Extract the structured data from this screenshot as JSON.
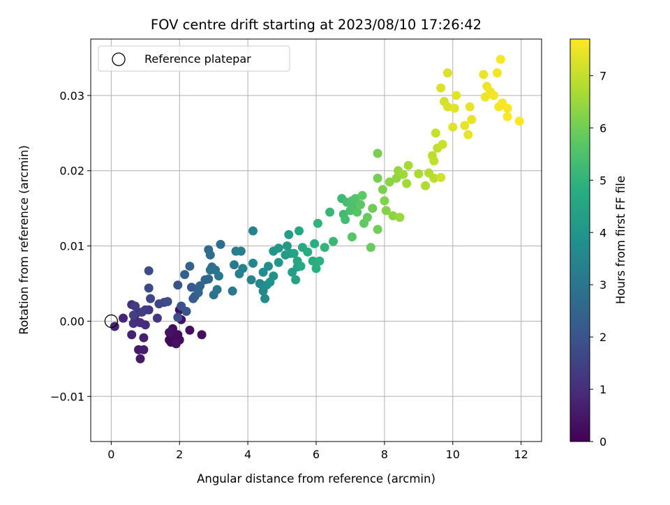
{
  "chart_data": {
    "type": "scatter",
    "title": "FOV centre drift starting at 2023/08/10 17:26:42",
    "xlabel": "Angular distance from reference (arcmin)",
    "ylabel": "Rotation from reference (arcmin)",
    "xlim": [
      -0.6,
      12.6
    ],
    "ylim": [
      -0.016,
      0.0375
    ],
    "xticks": [
      0,
      2,
      4,
      6,
      8,
      10,
      12
    ],
    "xtick_labels": [
      "0",
      "2",
      "4",
      "6",
      "8",
      "10",
      "12"
    ],
    "yticks": [
      -0.01,
      0.0,
      0.01,
      0.02,
      0.03
    ],
    "ytick_labels": [
      "−0.01",
      "0.00",
      "0.01",
      "0.02",
      "0.03"
    ],
    "grid": true,
    "legend": {
      "location": "upper-left",
      "entries": [
        "Reference platepar"
      ]
    },
    "reference_point": {
      "x": 0.0,
      "y": 0.0,
      "marker": "open-circle"
    },
    "colorbar": {
      "label": "Hours from first FF file",
      "colormap": "viridis",
      "range": [
        0,
        7.7
      ],
      "ticks": [
        0,
        1,
        2,
        3,
        4,
        5,
        6,
        7
      ],
      "tick_labels": [
        "0",
        "1",
        "2",
        "3",
        "4",
        "5",
        "6",
        "7"
      ]
    },
    "series": [
      {
        "columns": [
          "x",
          "y",
          "hours"
        ],
        "points": [
          [
            1.7,
            -0.0025,
            0.1
          ],
          [
            1.8,
            -0.002,
            0.12
          ],
          [
            1.9,
            -0.003,
            0.14
          ],
          [
            1.75,
            -0.0028,
            0.15
          ],
          [
            1.85,
            -0.0022,
            0.18
          ],
          [
            2.0,
            -0.0025,
            0.2
          ],
          [
            1.95,
            -0.0018,
            0.22
          ],
          [
            1.8,
            -0.001,
            0.25
          ],
          [
            2.65,
            -0.0018,
            0.28
          ],
          [
            2.3,
            -0.0012,
            0.3
          ],
          [
            2.05,
            0.0002,
            0.33
          ],
          [
            2.0,
            0.0015,
            0.35
          ],
          [
            1.9,
            -0.003,
            0.38
          ],
          [
            1.7,
            -0.0015,
            0.4
          ],
          [
            0.85,
            -0.005,
            0.5
          ],
          [
            0.8,
            -0.0038,
            0.55
          ],
          [
            0.95,
            -0.0038,
            0.6
          ],
          [
            0.95,
            -0.0022,
            0.65
          ],
          [
            0.6,
            -0.0018,
            0.7
          ],
          [
            0.1,
            -0.0007,
            0.75
          ],
          [
            0.35,
            0.0004,
            0.8
          ],
          [
            0.7,
            0.0002,
            0.85
          ],
          [
            0.8,
            0.0012,
            0.9
          ],
          [
            1.0,
            -0.0005,
            0.95
          ],
          [
            0.85,
            -0.0002,
            1.0
          ],
          [
            0.6,
            0.0022,
            1.05
          ],
          [
            0.65,
            -0.0003,
            1.1
          ],
          [
            1.35,
            0.0004,
            1.2
          ],
          [
            1.1,
            0.0015,
            1.25
          ],
          [
            1.0,
            0.0015,
            1.3
          ],
          [
            0.7,
            0.002,
            1.35
          ],
          [
            0.9,
            0.0012,
            1.4
          ],
          [
            0.65,
            0.0008,
            1.45
          ],
          [
            1.55,
            0.0025,
            1.55
          ],
          [
            1.4,
            0.0023,
            1.6
          ],
          [
            1.15,
            0.003,
            1.65
          ],
          [
            1.1,
            0.0044,
            1.7
          ],
          [
            1.1,
            0.0067,
            1.75
          ],
          [
            1.65,
            0.0026,
            1.8
          ],
          [
            1.95,
            0.0005,
            1.85
          ],
          [
            2.05,
            0.002,
            1.9
          ],
          [
            1.95,
            0.0048,
            1.95
          ],
          [
            2.2,
            0.0013,
            2.05
          ],
          [
            2.35,
            0.0045,
            2.15
          ],
          [
            2.4,
            0.003,
            2.2
          ],
          [
            2.45,
            0.0033,
            2.25
          ],
          [
            2.55,
            0.0043,
            2.3
          ],
          [
            2.15,
            0.0062,
            2.35
          ],
          [
            2.3,
            0.0073,
            2.4
          ],
          [
            2.6,
            0.0047,
            2.45
          ],
          [
            2.55,
            0.0038,
            2.5
          ],
          [
            2.75,
            0.0055,
            2.55
          ],
          [
            2.85,
            0.0056,
            2.6
          ],
          [
            2.85,
            0.0095,
            2.65
          ],
          [
            2.9,
            0.0088,
            2.7
          ],
          [
            3.2,
            0.0102,
            2.75
          ],
          [
            2.95,
            0.0072,
            2.8
          ],
          [
            3.05,
            0.0068,
            2.85
          ],
          [
            2.9,
            0.0068,
            2.9
          ],
          [
            3.0,
            0.0035,
            2.95
          ],
          [
            3.1,
            0.0042,
            3.0
          ],
          [
            3.15,
            0.006,
            3.05
          ],
          [
            3.55,
            0.004,
            3.1
          ],
          [
            3.6,
            0.0075,
            3.15
          ],
          [
            3.65,
            0.0093,
            3.2
          ],
          [
            3.8,
            0.0093,
            3.25
          ],
          [
            3.75,
            0.0063,
            3.3
          ],
          [
            3.85,
            0.007,
            3.35
          ],
          [
            4.15,
            0.012,
            3.4
          ],
          [
            4.1,
            0.0055,
            3.45
          ],
          [
            4.15,
            0.0077,
            3.5
          ],
          [
            4.35,
            0.005,
            3.55
          ],
          [
            4.45,
            0.004,
            3.6
          ],
          [
            4.5,
            0.003,
            3.65
          ],
          [
            4.45,
            0.0065,
            3.7
          ],
          [
            4.55,
            0.0048,
            3.75
          ],
          [
            4.6,
            0.0073,
            3.8
          ],
          [
            4.75,
            0.006,
            3.85
          ],
          [
            4.65,
            0.0052,
            3.9
          ],
          [
            4.75,
            0.0093,
            3.95
          ],
          [
            4.9,
            0.0078,
            4.0
          ],
          [
            4.9,
            0.0097,
            4.05
          ],
          [
            5.1,
            0.0088,
            4.1
          ],
          [
            5.15,
            0.01,
            4.15
          ],
          [
            5.2,
            0.0115,
            4.2
          ],
          [
            5.25,
            0.009,
            4.25
          ],
          [
            5.3,
            0.0065,
            4.3
          ],
          [
            5.45,
            0.0072,
            4.35
          ],
          [
            5.4,
            0.0055,
            4.4
          ],
          [
            5.35,
            0.009,
            4.45
          ],
          [
            5.5,
            0.012,
            4.5
          ],
          [
            5.45,
            0.008,
            4.55
          ],
          [
            5.55,
            0.0073,
            4.6
          ],
          [
            5.6,
            0.0098,
            4.65
          ],
          [
            5.75,
            0.0092,
            4.7
          ],
          [
            5.9,
            0.008,
            4.75
          ],
          [
            5.95,
            0.0103,
            4.8
          ],
          [
            6.0,
            0.007,
            4.85
          ],
          [
            6.1,
            0.008,
            4.9
          ],
          [
            6.05,
            0.013,
            4.95
          ],
          [
            6.25,
            0.0098,
            5.0
          ],
          [
            6.4,
            0.0145,
            5.1
          ],
          [
            6.5,
            0.0106,
            5.15
          ],
          [
            6.75,
            0.0163,
            5.2
          ],
          [
            6.8,
            0.0142,
            5.25
          ],
          [
            6.85,
            0.0135,
            5.3
          ],
          [
            6.9,
            0.0158,
            5.35
          ],
          [
            7.0,
            0.0147,
            5.4
          ],
          [
            7.05,
            0.016,
            5.45
          ],
          [
            7.1,
            0.0152,
            5.5
          ],
          [
            7.15,
            0.0163,
            5.55
          ],
          [
            7.2,
            0.0145,
            5.6
          ],
          [
            7.05,
            0.0112,
            5.65
          ],
          [
            7.3,
            0.0155,
            5.7
          ],
          [
            7.35,
            0.0167,
            5.75
          ],
          [
            7.4,
            0.013,
            5.8
          ],
          [
            7.5,
            0.0138,
            5.85
          ],
          [
            7.6,
            0.0098,
            5.9
          ],
          [
            7.65,
            0.015,
            5.95
          ],
          [
            7.8,
            0.0122,
            6.0
          ],
          [
            7.8,
            0.019,
            6.05
          ],
          [
            7.8,
            0.0223,
            6.1
          ],
          [
            7.95,
            0.0175,
            6.15
          ],
          [
            8.0,
            0.016,
            6.2
          ],
          [
            8.05,
            0.0147,
            6.25
          ],
          [
            8.15,
            0.0185,
            6.3
          ],
          [
            8.25,
            0.014,
            6.35
          ],
          [
            8.35,
            0.019,
            6.4
          ],
          [
            8.4,
            0.02,
            6.45
          ],
          [
            8.45,
            0.0138,
            6.5
          ],
          [
            8.55,
            0.0195,
            6.55
          ],
          [
            8.65,
            0.0183,
            6.6
          ],
          [
            8.7,
            0.0207,
            6.65
          ],
          [
            9.0,
            0.0196,
            6.7
          ],
          [
            9.2,
            0.018,
            6.75
          ],
          [
            9.3,
            0.0197,
            6.8
          ],
          [
            9.45,
            0.019,
            6.85
          ],
          [
            9.4,
            0.022,
            6.9
          ],
          [
            9.45,
            0.0213,
            6.95
          ],
          [
            9.55,
            0.023,
            7.0
          ],
          [
            9.5,
            0.025,
            7.05
          ],
          [
            9.7,
            0.0235,
            7.1
          ],
          [
            9.65,
            0.0191,
            7.15
          ],
          [
            9.75,
            0.0292,
            7.2
          ],
          [
            9.85,
            0.0285,
            7.25
          ],
          [
            9.65,
            0.031,
            7.3
          ],
          [
            9.85,
            0.033,
            7.3
          ],
          [
            10.0,
            0.0258,
            7.35
          ],
          [
            10.05,
            0.0283,
            7.35
          ],
          [
            10.1,
            0.03,
            7.38
          ],
          [
            10.35,
            0.026,
            7.4
          ],
          [
            10.45,
            0.0248,
            7.42
          ],
          [
            10.5,
            0.0285,
            7.44
          ],
          [
            10.55,
            0.0268,
            7.46
          ],
          [
            10.9,
            0.0328,
            7.48
          ],
          [
            10.95,
            0.0298,
            7.5
          ],
          [
            11.0,
            0.0312,
            7.52
          ],
          [
            11.1,
            0.0305,
            7.54
          ],
          [
            11.2,
            0.03,
            7.55
          ],
          [
            11.3,
            0.033,
            7.56
          ],
          [
            11.35,
            0.0285,
            7.58
          ],
          [
            11.4,
            0.0348,
            7.6
          ],
          [
            11.45,
            0.029,
            7.62
          ],
          [
            11.6,
            0.0283,
            7.64
          ],
          [
            11.6,
            0.0272,
            7.66
          ],
          [
            11.95,
            0.0266,
            7.7
          ]
        ]
      }
    ]
  }
}
